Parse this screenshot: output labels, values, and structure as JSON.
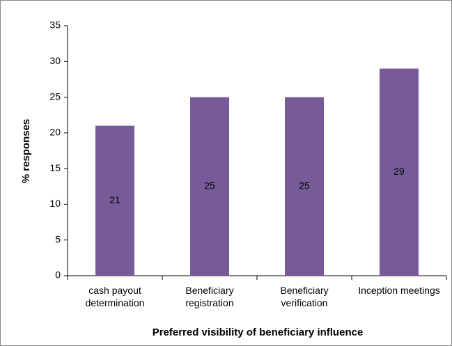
{
  "chart_data": {
    "type": "bar",
    "categories": [
      "cash payout determination",
      "Beneficiary registration",
      "Beneficiary verification",
      "Inception meetings"
    ],
    "values": [
      21,
      25,
      25,
      29
    ],
    "color": "#775b98",
    "xlabel": "Preferred visibility of beneficiary influence",
    "ylabel": "% responses",
    "ylim": [
      0,
      35
    ],
    "yticks": [
      0,
      5,
      10,
      15,
      20,
      25,
      30,
      35
    ],
    "grid": false
  }
}
